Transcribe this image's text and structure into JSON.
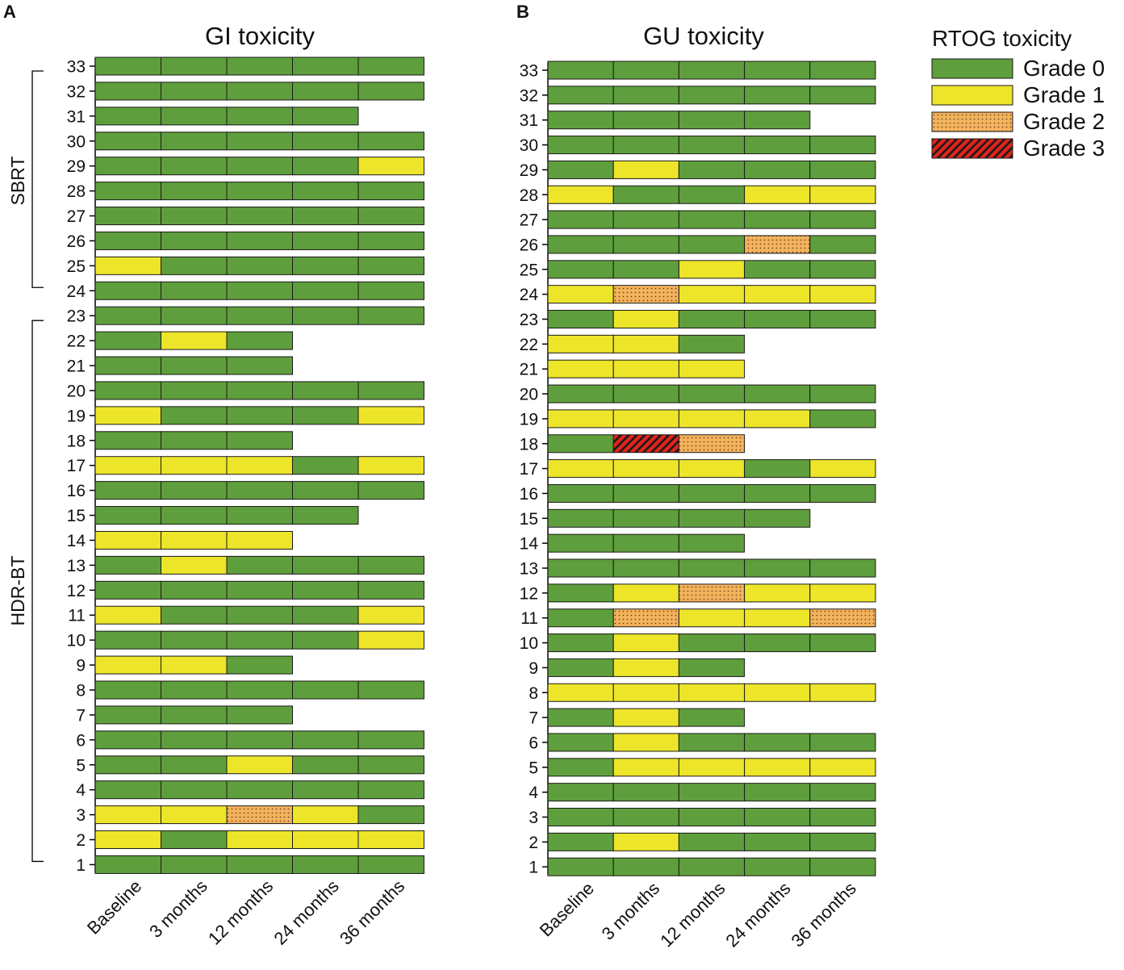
{
  "figure": {
    "grade_colors": {
      "0": "#5f9e3c",
      "1": "#ede52a",
      "2": "#f4b25c",
      "3": "#e0241c"
    },
    "legend": {
      "title": "RTOG toxicity",
      "entries": [
        {
          "grade": 0,
          "label": "Grade 0"
        },
        {
          "grade": 1,
          "label": "Grade 1"
        },
        {
          "grade": 2,
          "label": "Grade 2"
        },
        {
          "grade": 3,
          "label": "Grade 3"
        }
      ]
    },
    "groups": [
      {
        "label": "SBRT",
        "from": 24,
        "to": 33
      },
      {
        "label": "HDR-BT",
        "from": 1,
        "to": 23
      }
    ]
  },
  "chart_data": [
    {
      "type": "table",
      "panel": "A",
      "title": "GI toxicity",
      "categories": [
        "Baseline",
        "3 months",
        "12 months",
        "24 months",
        "36 months"
      ],
      "patients": [
        33,
        32,
        31,
        30,
        29,
        28,
        27,
        26,
        25,
        24,
        23,
        22,
        21,
        20,
        19,
        18,
        17,
        16,
        15,
        14,
        13,
        12,
        11,
        10,
        9,
        8,
        7,
        6,
        5,
        4,
        3,
        2,
        1
      ],
      "grades": {
        "33": [
          0,
          0,
          0,
          0,
          0
        ],
        "32": [
          0,
          0,
          0,
          0,
          0
        ],
        "31": [
          0,
          0,
          0,
          0
        ],
        "30": [
          0,
          0,
          0,
          0,
          0
        ],
        "29": [
          0,
          0,
          0,
          0,
          1
        ],
        "28": [
          0,
          0,
          0,
          0,
          0
        ],
        "27": [
          0,
          0,
          0,
          0,
          0
        ],
        "26": [
          0,
          0,
          0,
          0,
          0
        ],
        "25": [
          1,
          0,
          0,
          0,
          0
        ],
        "24": [
          0,
          0,
          0,
          0,
          0
        ],
        "23": [
          0,
          0,
          0,
          0,
          0
        ],
        "22": [
          0,
          1,
          0
        ],
        "21": [
          0,
          0,
          0
        ],
        "20": [
          0,
          0,
          0,
          0,
          0
        ],
        "19": [
          1,
          0,
          0,
          0,
          1
        ],
        "18": [
          0,
          0,
          0
        ],
        "17": [
          1,
          1,
          1,
          0,
          1
        ],
        "16": [
          0,
          0,
          0,
          0,
          0
        ],
        "15": [
          0,
          0,
          0,
          0
        ],
        "14": [
          1,
          1,
          1
        ],
        "13": [
          0,
          1,
          0,
          0,
          0
        ],
        "12": [
          0,
          0,
          0,
          0,
          0
        ],
        "11": [
          1,
          0,
          0,
          0,
          1
        ],
        "10": [
          0,
          0,
          0,
          0,
          1
        ],
        "9": [
          1,
          1,
          0
        ],
        "8": [
          0,
          0,
          0,
          0,
          0
        ],
        "7": [
          0,
          0,
          0
        ],
        "6": [
          0,
          0,
          0,
          0,
          0
        ],
        "5": [
          0,
          0,
          1,
          0,
          0
        ],
        "4": [
          0,
          0,
          0,
          0,
          0
        ],
        "3": [
          1,
          1,
          2,
          1,
          0
        ],
        "2": [
          1,
          0,
          1,
          1,
          1
        ],
        "1": [
          0,
          0,
          0,
          0,
          0
        ]
      }
    },
    {
      "type": "table",
      "panel": "B",
      "title": "GU toxicity",
      "categories": [
        "Baseline",
        "3 months",
        "12 months",
        "24 months",
        "36 months"
      ],
      "patients": [
        33,
        32,
        31,
        30,
        29,
        28,
        27,
        26,
        25,
        24,
        23,
        22,
        21,
        20,
        19,
        18,
        17,
        16,
        15,
        14,
        13,
        12,
        11,
        10,
        9,
        8,
        7,
        6,
        5,
        4,
        3,
        2,
        1
      ],
      "grades": {
        "33": [
          0,
          0,
          0,
          0,
          0
        ],
        "32": [
          0,
          0,
          0,
          0,
          0
        ],
        "31": [
          0,
          0,
          0,
          0
        ],
        "30": [
          0,
          0,
          0,
          0,
          0
        ],
        "29": [
          0,
          1,
          0,
          0,
          0
        ],
        "28": [
          1,
          0,
          0,
          1,
          1
        ],
        "27": [
          0,
          0,
          0,
          0,
          0
        ],
        "26": [
          0,
          0,
          0,
          2,
          0
        ],
        "25": [
          0,
          0,
          1,
          0,
          0
        ],
        "24": [
          1,
          2,
          1,
          1,
          1
        ],
        "23": [
          0,
          1,
          0,
          0,
          0
        ],
        "22": [
          1,
          1,
          0
        ],
        "21": [
          1,
          1,
          1
        ],
        "20": [
          0,
          0,
          0,
          0,
          0
        ],
        "19": [
          1,
          1,
          1,
          1,
          0
        ],
        "18": [
          0,
          3,
          2
        ],
        "17": [
          1,
          1,
          1,
          0,
          1
        ],
        "16": [
          0,
          0,
          0,
          0,
          0
        ],
        "15": [
          0,
          0,
          0,
          0
        ],
        "14": [
          0,
          0,
          0
        ],
        "13": [
          0,
          0,
          0,
          0,
          0
        ],
        "12": [
          0,
          1,
          2,
          1,
          1
        ],
        "11": [
          0,
          2,
          1,
          1,
          2
        ],
        "10": [
          0,
          1,
          0,
          0,
          0
        ],
        "9": [
          0,
          1,
          0
        ],
        "8": [
          1,
          1,
          1,
          1,
          1
        ],
        "7": [
          0,
          1,
          0
        ],
        "6": [
          0,
          1,
          0,
          0,
          0
        ],
        "5": [
          0,
          1,
          1,
          1,
          1
        ],
        "4": [
          0,
          0,
          0,
          0,
          0
        ],
        "3": [
          0,
          0,
          0,
          0,
          0
        ],
        "2": [
          0,
          1,
          0,
          0,
          0
        ],
        "1": [
          0,
          0,
          0,
          0,
          0
        ]
      }
    }
  ]
}
